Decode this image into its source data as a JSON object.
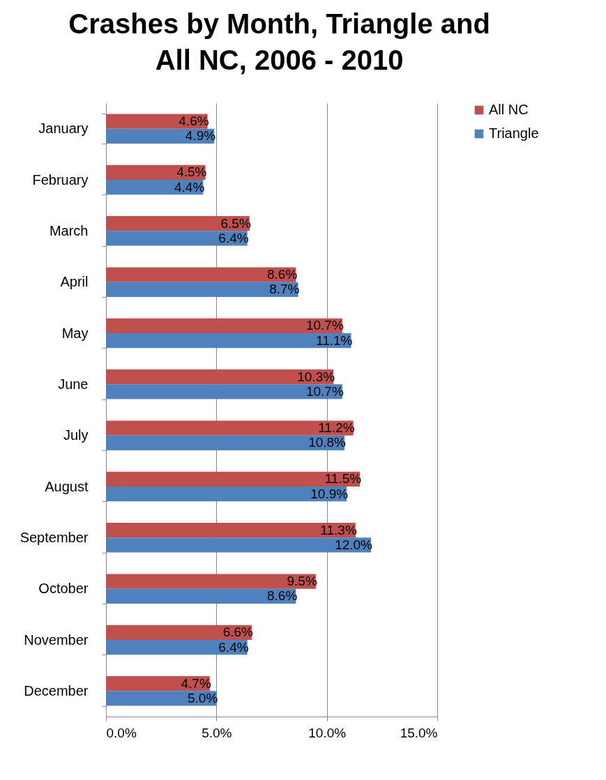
{
  "chart_data": {
    "type": "bar",
    "orientation": "horizontal",
    "title": "Crashes by Month, Triangle and All NC, 2006 - 2010",
    "categories": [
      "January",
      "February",
      "March",
      "April",
      "May",
      "June",
      "July",
      "August",
      "September",
      "October",
      "November",
      "December"
    ],
    "series": [
      {
        "name": "All NC",
        "color": "#c0504d",
        "values": [
          4.6,
          4.5,
          6.5,
          8.6,
          10.7,
          10.3,
          11.2,
          11.5,
          11.3,
          9.5,
          6.6,
          4.7
        ],
        "value_labels": [
          "4.6%",
          "4.5%",
          "6.5%",
          "8.6%",
          "10.7%",
          "10.3%",
          "11.2%",
          "11.5%",
          "11.3%",
          "9.5%",
          "6.6%",
          "4.7%"
        ]
      },
      {
        "name": "Triangle",
        "color": "#4f81bd",
        "values": [
          4.9,
          4.4,
          6.4,
          8.7,
          11.1,
          10.7,
          10.8,
          10.9,
          12.0,
          8.6,
          6.4,
          5.0
        ],
        "value_labels": [
          "4.9%",
          "4.4%",
          "6.4%",
          "8.7%",
          "11.1%",
          "10.7%",
          "10.8%",
          "10.9%",
          "12.0%",
          "8.6%",
          "6.4%",
          "5.0%"
        ]
      }
    ],
    "xlim": [
      0,
      15
    ],
    "xticks": [
      {
        "value": 0,
        "label": "0.0%"
      },
      {
        "value": 5,
        "label": "5.0%"
      },
      {
        "value": 10,
        "label": "10.0%"
      },
      {
        "value": 15,
        "label": "15.0%"
      }
    ],
    "grid": "x",
    "legend": "right"
  }
}
